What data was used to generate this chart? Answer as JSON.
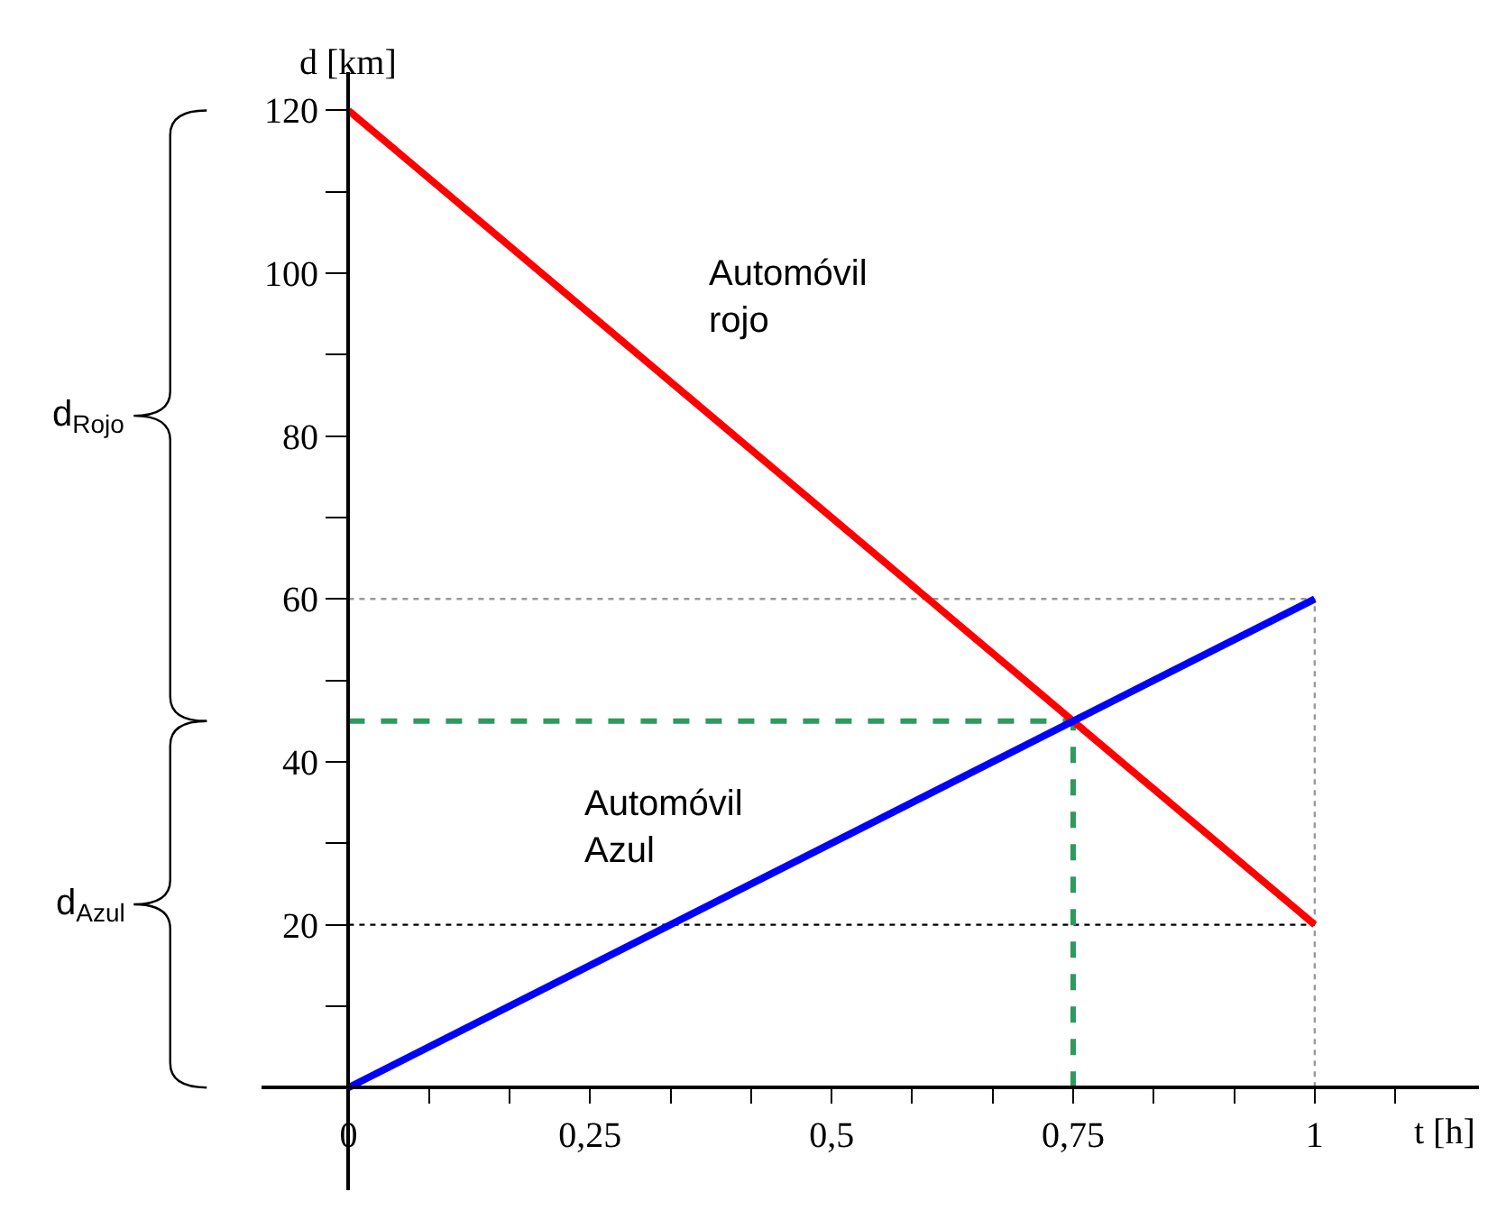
{
  "chart_data": {
    "type": "line",
    "xlabel": "t [h]",
    "ylabel": "d [km]",
    "x": [
      0,
      1
    ],
    "series": [
      {
        "name": null,
        "color": "#ff0000",
        "values": [
          120,
          20
        ]
      },
      {
        "name": null,
        "color": "#0000ff",
        "values": [
          0,
          60
        ]
      }
    ],
    "xlim": [
      -0.09,
      1.17
    ],
    "ylim": [
      -12.6,
      124.7
    ],
    "xticks": [
      {
        "value": 0,
        "label": "0"
      },
      {
        "value": 0.0833,
        "label": null
      },
      {
        "value": 0.1667,
        "label": null
      },
      {
        "value": 0.25,
        "label": "0,25"
      },
      {
        "value": 0.3333,
        "label": null
      },
      {
        "value": 0.4167,
        "label": null
      },
      {
        "value": 0.5,
        "label": "0,5"
      },
      {
        "value": 0.5833,
        "label": null
      },
      {
        "value": 0.6667,
        "label": null
      },
      {
        "value": 0.75,
        "label": "0,75"
      },
      {
        "value": 0.8333,
        "label": null
      },
      {
        "value": 0.9167,
        "label": null
      },
      {
        "value": 1,
        "label": "1"
      },
      {
        "value": 1.0833,
        "label": null
      }
    ],
    "yticks": [
      {
        "value": 10,
        "label": null
      },
      20,
      {
        "value": 30,
        "label": null
      },
      40,
      {
        "value": 50,
        "label": null
      },
      60,
      {
        "value": 70,
        "label": null
      },
      80,
      {
        "value": 90,
        "label": null
      },
      100,
      {
        "value": 110,
        "label": null
      },
      120
    ],
    "ref_lines": [
      {
        "axis": "y",
        "value": 60,
        "label": null,
        "color": "#999999",
        "line_style": "dotted"
      },
      {
        "axis": "x",
        "value": 1,
        "label": null,
        "color": "#999999",
        "line_style": "dotted"
      },
      {
        "axis": "y",
        "value": 20,
        "label": null,
        "color": "#000000",
        "line_style": "dotted"
      },
      {
        "axis": "y",
        "value": 45,
        "label": null,
        "color": "#2e9a5e",
        "line_style": "dashed"
      },
      {
        "axis": "x",
        "value": 0.75,
        "label": null,
        "color": "#2e9a5e",
        "line_style": "dashed"
      }
    ],
    "annotations": [
      "Automóvil\nrojo",
      "Automóvil\nAzul",
      "d$_{Rojo}$",
      "d$_{Azul}$"
    ],
    "grid": false,
    "marker": "none",
    "line_style": "solid"
  }
}
